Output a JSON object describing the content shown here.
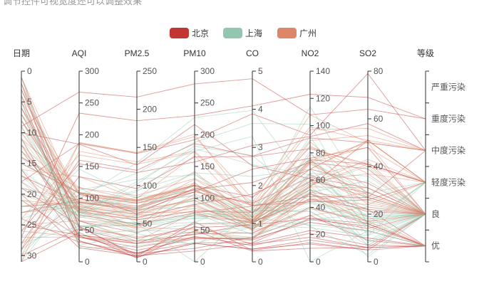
{
  "chart_data": {
    "type": "parallel",
    "title": "调节控件可视宽度还可以调整效果",
    "legend": {
      "placement": "top-center",
      "items": [
        {
          "name": "北京",
          "color": "#c23531"
        },
        {
          "name": "上海",
          "color": "#91c7ae"
        },
        {
          "name": "广州",
          "color": "#dd8668"
        }
      ]
    },
    "axes": [
      {
        "name": "日期",
        "min": 0,
        "max": 31,
        "inverse": true,
        "ticks": [
          0,
          5,
          10,
          15,
          20,
          25,
          30
        ]
      },
      {
        "name": "AQI",
        "min": 0,
        "max": 300,
        "ticks": [
          0,
          50,
          100,
          150,
          200,
          250,
          300
        ]
      },
      {
        "name": "PM2.5",
        "min": 0,
        "max": 250,
        "ticks": [
          0,
          50,
          100,
          150,
          200,
          250
        ]
      },
      {
        "name": "PM10",
        "min": 0,
        "max": 300,
        "ticks": [
          0,
          50,
          100,
          150,
          200,
          250,
          300
        ]
      },
      {
        "name": "CO",
        "min": 0,
        "max": 5,
        "ticks": [
          0,
          1,
          2,
          3,
          4,
          5
        ]
      },
      {
        "name": "NO2",
        "min": 0,
        "max": 140,
        "ticks": [
          0,
          20,
          40,
          60,
          80,
          100,
          120,
          140
        ]
      },
      {
        "name": "SO2",
        "min": 0,
        "max": 80,
        "ticks": [
          0,
          20,
          40,
          60,
          80
        ]
      },
      {
        "name": "等级",
        "type": "category",
        "categories": [
          "优",
          "良",
          "轻度污染",
          "中度污染",
          "重度污染",
          "严重污染"
        ]
      }
    ],
    "series": [
      {
        "name": "北京",
        "values": [
          [
            1,
            55,
            9,
            56,
            0.46,
            18,
            6,
            "良"
          ],
          [
            2,
            25,
            11,
            21,
            0.65,
            34,
            9,
            "优"
          ],
          [
            3,
            56,
            7,
            63,
            0.3,
            14,
            5,
            "良"
          ],
          [
            4,
            33,
            7,
            29,
            0.33,
            16,
            6,
            "优"
          ],
          [
            5,
            42,
            24,
            44,
            0.76,
            40,
            16,
            "优"
          ],
          [
            6,
            82,
            58,
            90,
            1.77,
            68,
            33,
            "良"
          ],
          [
            7,
            74,
            49,
            77,
            1.46,
            48,
            27,
            "良"
          ],
          [
            8,
            78,
            55,
            80,
            1.29,
            59,
            29,
            "良"
          ],
          [
            9,
            267,
            216,
            280,
            4.8,
            108,
            64,
            "重度污染"
          ],
          [
            10,
            185,
            127,
            216,
            2.52,
            61,
            27,
            "中度污染"
          ],
          [
            11,
            39,
            19,
            38,
            0.57,
            31,
            15,
            "优"
          ],
          [
            12,
            41,
            11,
            40,
            0.43,
            21,
            7,
            "优"
          ],
          [
            13,
            64,
            38,
            74,
            1.04,
            46,
            22,
            "良"
          ],
          [
            14,
            108,
            79,
            120,
            1.7,
            75,
            41,
            "轻度污染"
          ],
          [
            15,
            108,
            63,
            116,
            1.48,
            44,
            26,
            "轻度污染"
          ],
          [
            16,
            33,
            6,
            29,
            0.34,
            13,
            5,
            "优"
          ],
          [
            17,
            94,
            66,
            110,
            1.54,
            62,
            31,
            "良"
          ],
          [
            18,
            186,
            142,
            192,
            3.88,
            93,
            79,
            "中度污染"
          ],
          [
            19,
            57,
            31,
            54,
            0.96,
            32,
            14,
            "良"
          ],
          [
            20,
            22,
            8,
            17,
            0.48,
            23,
            10,
            "优"
          ],
          [
            21,
            39,
            15,
            36,
            0.61,
            29,
            13,
            "优"
          ],
          [
            22,
            94,
            69,
            114,
            2.08,
            73,
            39,
            "良"
          ],
          [
            23,
            99,
            73,
            110,
            2.43,
            76,
            48,
            "良"
          ],
          [
            24,
            31,
            12,
            30,
            0.5,
            32,
            16,
            "优"
          ],
          [
            25,
            42,
            27,
            43,
            1.0,
            53,
            22,
            "优"
          ],
          [
            26,
            154,
            117,
            157,
            3.05,
            92,
            58,
            "中度污染"
          ],
          [
            27,
            234,
            185,
            230,
            4.09,
            123,
            69,
            "重度污染"
          ],
          [
            28,
            160,
            120,
            186,
            2.77,
            91,
            50,
            "中度污染"
          ],
          [
            29,
            134,
            96,
            165,
            2.76,
            83,
            41,
            "轻度污染"
          ],
          [
            30,
            52,
            24,
            60,
            1.03,
            50,
            21,
            "良"
          ],
          [
            31,
            46,
            5,
            49,
            0.28,
            10,
            6,
            "优"
          ]
        ]
      },
      {
        "name": "上海",
        "values": [
          [
            1,
            26,
            37,
            27,
            1.163,
            27,
            13,
            "优"
          ],
          [
            2,
            85,
            62,
            71,
            1.195,
            60,
            8,
            "良"
          ],
          [
            3,
            78,
            38,
            74,
            1.363,
            37,
            7,
            "良"
          ],
          [
            4,
            21,
            21,
            36,
            0.634,
            40,
            9,
            "优"
          ],
          [
            5,
            41,
            42,
            46,
            0.915,
            81,
            13,
            "优"
          ],
          [
            6,
            56,
            52,
            69,
            1.067,
            92,
            16,
            "良"
          ],
          [
            7,
            64,
            30,
            28,
            0.924,
            51,
            2,
            "良"
          ],
          [
            8,
            55,
            48,
            74,
            1.236,
            75,
            26,
            "良"
          ],
          [
            9,
            76,
            85,
            113,
            1.237,
            114,
            27,
            "良"
          ],
          [
            10,
            91,
            81,
            104,
            1.041,
            56,
            40,
            "良"
          ],
          [
            11,
            84,
            39,
            60,
            0.964,
            25,
            11,
            "良"
          ],
          [
            12,
            64,
            51,
            101,
            0.862,
            58,
            23,
            "良"
          ],
          [
            13,
            70,
            69,
            120,
            1.198,
            65,
            36,
            "良"
          ],
          [
            14,
            77,
            105,
            178,
            2.549,
            64,
            16,
            "良"
          ],
          [
            15,
            109,
            68,
            87,
            0.996,
            74,
            29,
            "轻度污染"
          ],
          [
            16,
            73,
            68,
            97,
            0.905,
            51,
            34,
            "良"
          ],
          [
            17,
            54,
            27,
            47,
            0.592,
            53,
            12,
            "良"
          ],
          [
            18,
            51,
            61,
            97,
            0.811,
            65,
            19,
            "良"
          ],
          [
            19,
            91,
            71,
            121,
            1.374,
            43,
            18,
            "良"
          ],
          [
            20,
            73,
            102,
            182,
            2.787,
            44,
            19,
            "良"
          ],
          [
            21,
            73,
            50,
            76,
            0.717,
            31,
            20,
            "良"
          ],
          [
            22,
            84,
            94,
            140,
            2.238,
            68,
            18,
            "良"
          ],
          [
            23,
            93,
            77,
            104,
            1.165,
            53,
            7,
            "良"
          ],
          [
            24,
            99,
            130,
            227,
            3.97,
            55,
            15,
            "良"
          ],
          [
            25,
            146,
            84,
            139,
            1.094,
            40,
            17,
            "轻度污染"
          ],
          [
            26,
            113,
            108,
            137,
            1.481,
            48,
            15,
            "轻度污染"
          ],
          [
            27,
            81,
            48,
            62,
            1.619,
            26,
            3,
            "良"
          ],
          [
            28,
            56,
            48,
            68,
            1.336,
            37,
            9,
            "良"
          ],
          [
            29,
            82,
            92,
            174,
            3.29,
            0,
            13,
            "良"
          ],
          [
            30,
            106,
            116,
            188,
            3.628,
            101,
            16,
            "轻度污染"
          ],
          [
            31,
            118,
            50,
            0,
            1.383,
            76,
            11,
            "轻度污染"
          ]
        ]
      },
      {
        "name": "广州",
        "values": [
          [
            1,
            91,
            45,
            125,
            0.82,
            34,
            23,
            "良"
          ],
          [
            2,
            65,
            27,
            78,
            0.86,
            45,
            29,
            "良"
          ],
          [
            3,
            83,
            60,
            84,
            1.09,
            73,
            27,
            "良"
          ],
          [
            4,
            109,
            81,
            121,
            1.28,
            68,
            51,
            "轻度污染"
          ],
          [
            5,
            106,
            77,
            114,
            1.07,
            55,
            51,
            "轻度污染"
          ],
          [
            6,
            109,
            81,
            121,
            1.28,
            68,
            51,
            "轻度污染"
          ],
          [
            7,
            106,
            77,
            114,
            1.07,
            55,
            51,
            "轻度污染"
          ],
          [
            8,
            89,
            65,
            78,
            0.86,
            51,
            26,
            "良"
          ],
          [
            9,
            53,
            33,
            47,
            0.64,
            50,
            17,
            "良"
          ],
          [
            10,
            80,
            55,
            80,
            1.01,
            75,
            24,
            "良"
          ],
          [
            11,
            117,
            81,
            124,
            1.03,
            45,
            24,
            "轻度污染"
          ],
          [
            12,
            99,
            71,
            142,
            1.1,
            62,
            42,
            "良"
          ],
          [
            13,
            95,
            69,
            130,
            1.28,
            74,
            50,
            "良"
          ],
          [
            14,
            116,
            87,
            131,
            1.47,
            84,
            40,
            "轻度污染"
          ],
          [
            15,
            108,
            80,
            121,
            1.3,
            85,
            37,
            "轻度污染"
          ],
          [
            16,
            134,
            83,
            167,
            1.16,
            57,
            43,
            "轻度污染"
          ],
          [
            17,
            79,
            43,
            107,
            1.05,
            59,
            37,
            "良"
          ],
          [
            18,
            71,
            46,
            89,
            0.86,
            64,
            25,
            "良"
          ],
          [
            19,
            97,
            71,
            113,
            1.17,
            88,
            31,
            "良"
          ],
          [
            20,
            84,
            57,
            91,
            0.85,
            55,
            31,
            "良"
          ],
          [
            21,
            87,
            63,
            101,
            0.9,
            56,
            41,
            "良"
          ],
          [
            22,
            104,
            77,
            119,
            1.09,
            73,
            48,
            "轻度污染"
          ],
          [
            23,
            87,
            62,
            100,
            1.0,
            72,
            28,
            "良"
          ],
          [
            24,
            168,
            128,
            172,
            1.49,
            97,
            56,
            "中度污染"
          ],
          [
            25,
            65,
            45,
            51,
            0.74,
            39,
            17,
            "良"
          ],
          [
            26,
            39,
            24,
            38,
            0.61,
            47,
            17,
            "优"
          ],
          [
            27,
            39,
            24,
            39,
            0.59,
            50,
            19,
            "优"
          ],
          [
            28,
            93,
            68,
            96,
            1.05,
            79,
            29,
            "良"
          ],
          [
            29,
            188,
            143,
            197,
            1.66,
            99,
            51,
            "中度污染"
          ],
          [
            30,
            174,
            131,
            174,
            1.55,
            108,
            50,
            "中度污染"
          ],
          [
            31,
            187,
            143,
            201,
            1.39,
            89,
            53,
            "中度污染"
          ]
        ]
      }
    ]
  }
}
